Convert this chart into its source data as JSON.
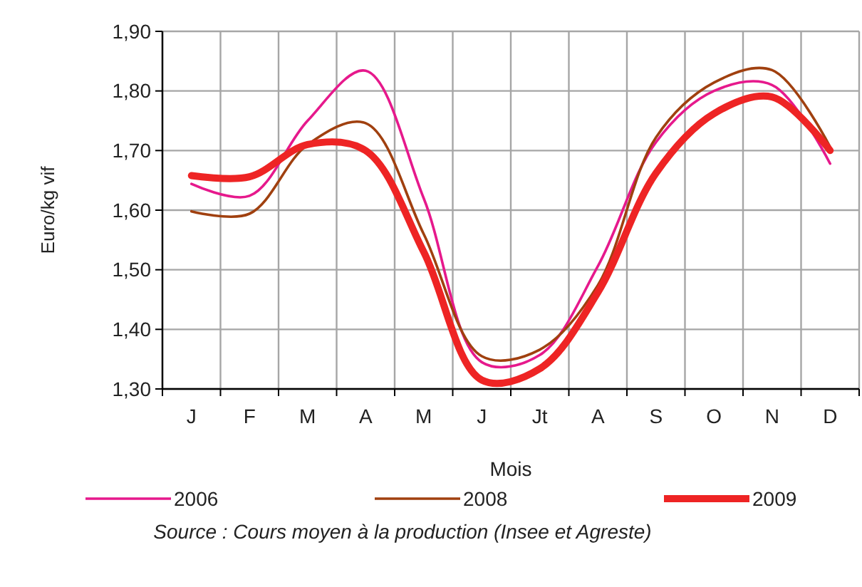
{
  "chart_data": {
    "type": "line",
    "ylabel": "Euro/kg vif",
    "xlabel": "Mois",
    "categories": [
      "J",
      "F",
      "M",
      "A",
      "M",
      "J",
      "Jt",
      "A",
      "S",
      "O",
      "N",
      "D"
    ],
    "ylim": [
      1.3,
      1.9
    ],
    "yticks": [
      {
        "value": 1.3,
        "label": "1,30"
      },
      {
        "value": 1.4,
        "label": "1,40"
      },
      {
        "value": 1.5,
        "label": "1,50"
      },
      {
        "value": 1.6,
        "label": "1,60"
      },
      {
        "value": 1.7,
        "label": "1,70"
      },
      {
        "value": 1.8,
        "label": "1,80"
      },
      {
        "value": 1.9,
        "label": "1,90"
      }
    ],
    "grid": true,
    "legend": "bottom",
    "marker": "none",
    "line_style": "solid",
    "series": [
      {
        "name": "2006",
        "color": "#e6198c",
        "values": [
          1.644,
          1.624,
          1.75,
          1.834,
          1.62,
          1.345,
          1.357,
          1.506,
          1.714,
          1.8,
          1.81,
          1.678
        ]
      },
      {
        "name": "2008",
        "color": "#a0400f",
        "values": [
          1.598,
          1.594,
          1.71,
          1.746,
          1.56,
          1.355,
          1.366,
          1.474,
          1.722,
          1.814,
          1.835,
          1.706
        ]
      },
      {
        "name": "2009",
        "color": "#ee2424",
        "values": [
          1.658,
          1.656,
          1.71,
          1.7,
          1.53,
          1.315,
          1.334,
          1.462,
          1.662,
          1.762,
          1.79,
          1.7
        ]
      }
    ],
    "annotations": [
      "Source : Cours moyen à la production (Insee et Agreste)"
    ]
  }
}
